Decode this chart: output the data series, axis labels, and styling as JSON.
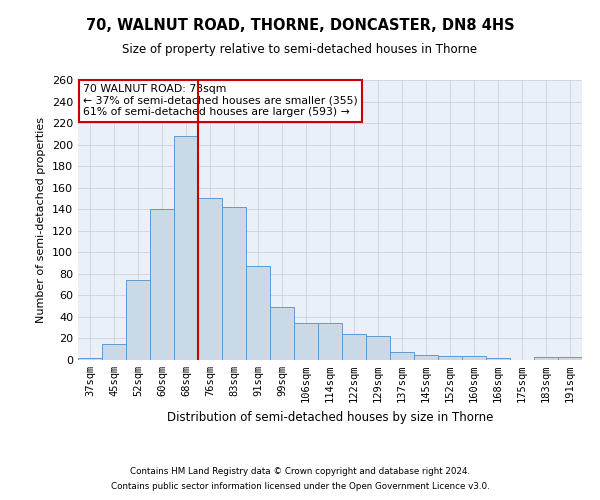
{
  "title1": "70, WALNUT ROAD, THORNE, DONCASTER, DN8 4HS",
  "title2": "Size of property relative to semi-detached houses in Thorne",
  "xlabel": "Distribution of semi-detached houses by size in Thorne",
  "ylabel": "Number of semi-detached properties",
  "footnote1": "Contains HM Land Registry data © Crown copyright and database right 2024.",
  "footnote2": "Contains public sector information licensed under the Open Government Licence v3.0.",
  "categories": [
    "37sqm",
    "45sqm",
    "52sqm",
    "60sqm",
    "68sqm",
    "76sqm",
    "83sqm",
    "91sqm",
    "99sqm",
    "106sqm",
    "114sqm",
    "122sqm",
    "129sqm",
    "137sqm",
    "145sqm",
    "152sqm",
    "160sqm",
    "168sqm",
    "175sqm",
    "183sqm",
    "191sqm"
  ],
  "values": [
    2,
    15,
    74,
    140,
    208,
    150,
    142,
    87,
    49,
    34,
    34,
    24,
    22,
    7,
    5,
    4,
    4,
    2,
    0,
    3,
    3
  ],
  "bar_color": "#c9d9e8",
  "bar_edge_color": "#5b9bd5",
  "vline_color": "#cc0000",
  "annotation_text": "70 WALNUT ROAD: 73sqm\n← 37% of semi-detached houses are smaller (355)\n61% of semi-detached houses are larger (593) →",
  "annotation_box_color": "#ffffff",
  "annotation_box_edge": "#cc0000",
  "ylim": [
    0,
    260
  ],
  "yticks": [
    0,
    20,
    40,
    60,
    80,
    100,
    120,
    140,
    160,
    180,
    200,
    220,
    240,
    260
  ],
  "bg_color": "#ffffff",
  "plot_bg_color": "#eaf0f7",
  "grid_color": "#c8d4e0"
}
